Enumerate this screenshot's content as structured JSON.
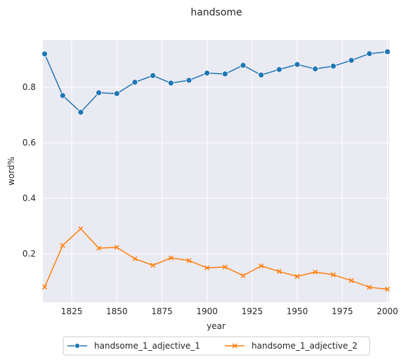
{
  "chart_data": {
    "type": "line",
    "title": "handsome",
    "xlabel": "year",
    "ylabel": "word%",
    "xlim": [
      1809,
      2001
    ],
    "ylim": [
      0.025,
      0.97
    ],
    "xticks": [
      1825,
      1850,
      1875,
      1900,
      1925,
      1950,
      1975,
      2000
    ],
    "yticks": [
      0.2,
      0.4,
      0.6,
      0.8
    ],
    "ytick_labels": [
      "0.2",
      "0.4",
      "0.6",
      "0.8"
    ],
    "grid": true,
    "legend_position": "bottom-center, outside plot",
    "x": [
      1810,
      1820,
      1830,
      1840,
      1850,
      1860,
      1870,
      1880,
      1890,
      1900,
      1910,
      1920,
      1930,
      1940,
      1950,
      1960,
      1970,
      1980,
      1990,
      2000
    ],
    "series": [
      {
        "name": "handsome_1_adjective_1",
        "color": "#1f77b4",
        "marker": "circle",
        "values": [
          0.92,
          0.77,
          0.71,
          0.78,
          0.777,
          0.818,
          0.842,
          0.815,
          0.825,
          0.851,
          0.848,
          0.879,
          0.844,
          0.864,
          0.882,
          0.866,
          0.876,
          0.897,
          0.921,
          0.928
        ]
      },
      {
        "name": "handsome_1_adjective_2",
        "color": "#ff7f0e",
        "marker": "x",
        "values": [
          0.08,
          0.23,
          0.29,
          0.22,
          0.223,
          0.182,
          0.158,
          0.185,
          0.175,
          0.149,
          0.152,
          0.121,
          0.156,
          0.136,
          0.118,
          0.134,
          0.124,
          0.103,
          0.079,
          0.072
        ]
      }
    ]
  }
}
